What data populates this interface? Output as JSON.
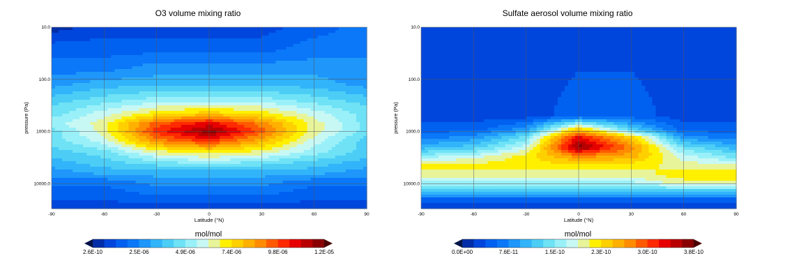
{
  "colors": {
    "palette": [
      "#002ea8",
      "#0046dc",
      "#0060f0",
      "#0a78f8",
      "#1e96fa",
      "#32b4fa",
      "#4ccdf6",
      "#6fe2f6",
      "#9af0f8",
      "#c8f8f4",
      "#e8f49a",
      "#fff000",
      "#ffd000",
      "#ffb000",
      "#ff8c00",
      "#ff5a00",
      "#ff2a00",
      "#e60000",
      "#b80000",
      "#8a0000"
    ],
    "grid": "#555555"
  },
  "icons": [
    "colorbar-left-arrow-icon",
    "colorbar-right-arrow-icon"
  ],
  "chart_data": [
    {
      "type": "heatmap",
      "title": "O3 volume mixing ratio",
      "xlabel": "Latitude (°N)",
      "ylabel": "pressure (Pa)",
      "xlim": [
        -90,
        90
      ],
      "ylim": [
        10,
        30000
      ],
      "yscale": "log",
      "yreversed": true,
      "grid": true,
      "x_ticks": [
        "-90",
        "-60",
        "-30",
        "0",
        "30",
        "60",
        "90"
      ],
      "x_tick_values": [
        -90,
        -60,
        -30,
        0,
        30,
        60,
        90
      ],
      "y_ticks": [
        "10.0",
        "100.0",
        "1000.0",
        "10000.0"
      ],
      "y_tick_values": [
        10,
        100,
        1000,
        10000
      ],
      "colorbar": {
        "label": "mol/mol",
        "min": 2.6e-10,
        "max": 1.2e-05,
        "tick_labels": [
          "2.6E-10",
          "2.5E-06",
          "4.9E-06",
          "7.4E-06",
          "9.8E-06",
          "1.2E-05"
        ],
        "extend": "both"
      },
      "field": {
        "bands": [
          {
            "p": 10,
            "lat": [
              -90,
              -60,
              -30,
              0,
              30,
              60,
              90
            ],
            "level": [
              0,
              1,
              1,
              1,
              1,
              2,
              3
            ]
          },
          {
            "p": 25,
            "lat": [
              -90,
              -60,
              -30,
              0,
              30,
              60,
              90
            ],
            "level": [
              2,
              2,
              2,
              2,
              2,
              3,
              3
            ]
          },
          {
            "p": 60,
            "lat": [
              -90,
              -60,
              -30,
              0,
              30,
              60,
              90
            ],
            "level": [
              3,
              3,
              4,
              4,
              4,
              4,
              4
            ]
          },
          {
            "p": 120,
            "lat": [
              -90,
              -60,
              -30,
              0,
              30,
              60,
              90
            ],
            "level": [
              4,
              5,
              5,
              5,
              5,
              5,
              4
            ]
          },
          {
            "p": 250,
            "lat": [
              -90,
              -60,
              -30,
              0,
              30,
              60,
              90
            ],
            "level": [
              6,
              7,
              8,
              8,
              8,
              7,
              6
            ]
          },
          {
            "p": 450,
            "lat": [
              -90,
              -60,
              -30,
              0,
              30,
              60,
              90
            ],
            "level": [
              7,
              9,
              11,
              12,
              11,
              9,
              7
            ]
          },
          {
            "p": 700,
            "lat": [
              -90,
              -60,
              -30,
              0,
              30,
              60,
              90
            ],
            "level": [
              8,
              10,
              15,
              17,
              14,
              10,
              7
            ]
          },
          {
            "p": 1000,
            "lat": [
              -90,
              -60,
              -30,
              0,
              30,
              60,
              90
            ],
            "level": [
              7,
              10,
              16,
              19,
              15,
              10,
              7
            ]
          },
          {
            "p": 1500,
            "lat": [
              -90,
              -60,
              -30,
              0,
              30,
              60,
              90
            ],
            "level": [
              7,
              9,
              14,
              16,
              13,
              9,
              6
            ]
          },
          {
            "p": 2500,
            "lat": [
              -90,
              -60,
              -30,
              0,
              30,
              60,
              90
            ],
            "level": [
              6,
              7,
              10,
              11,
              10,
              8,
              6
            ]
          },
          {
            "p": 4000,
            "lat": [
              -90,
              -60,
              -30,
              0,
              30,
              60,
              90
            ],
            "level": [
              5,
              6,
              7,
              8,
              7,
              6,
              5
            ]
          },
          {
            "p": 6000,
            "lat": [
              -90,
              -60,
              -30,
              0,
              30,
              60,
              90
            ],
            "level": [
              4,
              5,
              5,
              5,
              5,
              5,
              4
            ]
          },
          {
            "p": 9000,
            "lat": [
              -90,
              -60,
              -30,
              0,
              30,
              60,
              90
            ],
            "level": [
              3,
              3,
              4,
              4,
              4,
              3,
              3
            ]
          },
          {
            "p": 14000,
            "lat": [
              -90,
              -60,
              -30,
              0,
              30,
              60,
              90
            ],
            "level": [
              2,
              2,
              3,
              3,
              3,
              2,
              2
            ]
          },
          {
            "p": 30000,
            "lat": [
              -90,
              -60,
              -30,
              0,
              30,
              60,
              90
            ],
            "level": [
              1,
              1,
              1,
              1,
              1,
              1,
              1
            ]
          }
        ]
      }
    },
    {
      "type": "heatmap",
      "title": "Sulfate aerosol volume mixing ratio",
      "xlabel": "Latitude (°N)",
      "ylabel": "pressure (Pa)",
      "xlim": [
        -90,
        90
      ],
      "ylim": [
        10,
        30000
      ],
      "yscale": "log",
      "yreversed": true,
      "grid": true,
      "x_ticks": [
        "-90",
        "-60",
        "-30",
        "0",
        "30",
        "60",
        "90"
      ],
      "x_tick_values": [
        -90,
        -60,
        -30,
        0,
        30,
        60,
        90
      ],
      "y_ticks": [
        "10.0",
        "100.0",
        "1000.0",
        "10000.0"
      ],
      "y_tick_values": [
        10,
        100,
        1000,
        10000
      ],
      "colorbar": {
        "label": "mol/mol",
        "min": 0.0,
        "max": 3.8e-10,
        "tick_labels": [
          "0.0E+00",
          "7.6E-11",
          "1.5E-10",
          "2.3E-10",
          "3.0E-10",
          "3.8E-10"
        ],
        "extend": "both"
      },
      "field": {
        "bands": [
          {
            "p": 10,
            "lat": [
              -90,
              -60,
              -30,
              0,
              30,
              60,
              90
            ],
            "level": [
              1,
              1,
              1,
              1,
              1,
              1,
              1
            ]
          },
          {
            "p": 500,
            "lat": [
              -90,
              -60,
              -30,
              0,
              30,
              60,
              90
            ],
            "level": [
              1,
              1,
              1,
              2,
              2,
              1,
              1
            ]
          },
          {
            "p": 900,
            "lat": [
              -90,
              -60,
              -30,
              0,
              30,
              60,
              90
            ],
            "level": [
              2,
              2,
              4,
              12,
              6,
              2,
              2
            ]
          },
          {
            "p": 1300,
            "lat": [
              -90,
              -60,
              -30,
              0,
              30,
              60,
              90
            ],
            "level": [
              3,
              4,
              7,
              17,
              12,
              4,
              3
            ]
          },
          {
            "p": 2000,
            "lat": [
              -90,
              -60,
              -30,
              0,
              30,
              60,
              90
            ],
            "level": [
              5,
              6,
              9,
              19,
              14,
              7,
              5
            ]
          },
          {
            "p": 3000,
            "lat": [
              -90,
              -60,
              -30,
              0,
              30,
              60,
              90
            ],
            "level": [
              8,
              9,
              11,
              14,
              13,
              9,
              7
            ]
          },
          {
            "p": 4500,
            "lat": [
              -90,
              -60,
              -30,
              0,
              30,
              60,
              90
            ],
            "level": [
              11,
              11,
              11,
              11,
              11,
              10,
              10
            ]
          },
          {
            "p": 7000,
            "lat": [
              -90,
              -60,
              -30,
              0,
              30,
              60,
              90
            ],
            "level": [
              10,
              10,
              10,
              10,
              10,
              11,
              11
            ]
          },
          {
            "p": 10000,
            "lat": [
              -90,
              -60,
              -30,
              0,
              30,
              60,
              90
            ],
            "level": [
              8,
              8,
              8,
              8,
              8,
              10,
              10
            ]
          },
          {
            "p": 15000,
            "lat": [
              -90,
              -60,
              -30,
              0,
              30,
              60,
              90
            ],
            "level": [
              5,
              5,
              5,
              5,
              5,
              5,
              5
            ]
          },
          {
            "p": 20000,
            "lat": [
              -90,
              -60,
              -30,
              0,
              30,
              60,
              90
            ],
            "level": [
              2,
              2,
              2,
              2,
              2,
              2,
              2
            ]
          },
          {
            "p": 30000,
            "lat": [
              -90,
              -60,
              -30,
              0,
              30,
              60,
              90
            ],
            "level": [
              1,
              1,
              1,
              1,
              1,
              1,
              1
            ]
          }
        ]
      }
    }
  ]
}
